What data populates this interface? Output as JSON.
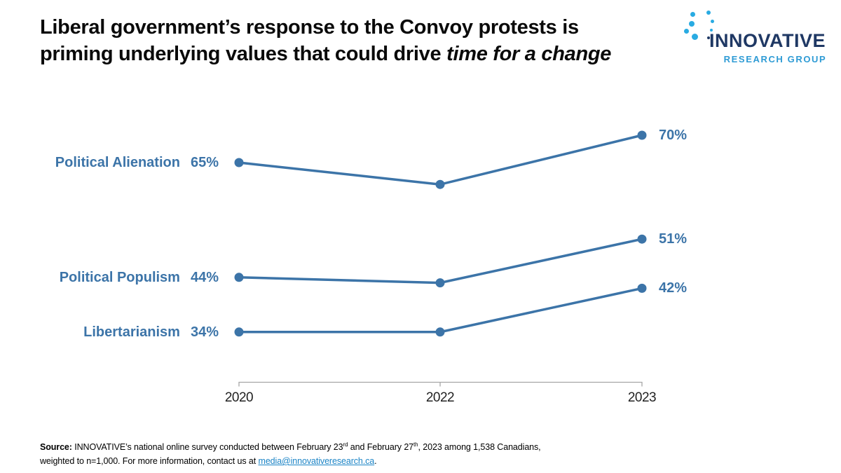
{
  "title": {
    "line1": "Liberal government’s response to the Convoy protests is",
    "line2_regular": "priming underlying values that could drive ",
    "line2_italic": "time for a change"
  },
  "logo": {
    "wordmark": "INNOVATIVE",
    "subtitle": "RESEARCH GROUP",
    "colors": {
      "navy": "#1F3864",
      "light_blue": "#29ABE2",
      "subtitle_blue": "#2E9BD5"
    }
  },
  "chart_data": {
    "type": "line",
    "x": [
      "2020",
      "2022",
      "2023"
    ],
    "series": [
      {
        "name": "Political Alienation",
        "values": [
          65,
          61,
          70
        ],
        "start_label": "65%",
        "end_label": "70%"
      },
      {
        "name": "Political Populism",
        "values": [
          44,
          43,
          51
        ],
        "start_label": "44%",
        "end_label": "51%"
      },
      {
        "name": "Libertarianism",
        "values": [
          34,
          34,
          42
        ],
        "start_label": "34%",
        "end_label": "42%"
      }
    ],
    "color": "#3C74A8",
    "axis_color": "#A6A6A6",
    "grid": false,
    "legend_position": "left-of-lines"
  },
  "footer": {
    "source_label": "Source:",
    "text_1": " INNOVATIVE’s national online survey conducted between February 23",
    "sup_1": "rd",
    "text_2": " and February 27",
    "sup_2": "th",
    "text_3": ", 2023  among 1,538  Canadians,",
    "line2_text": "weighted to n=1,000. For more information, contact us at ",
    "link_text": "media@innovativeresearch.ca",
    "line2_end": ".",
    "link_color": "#1B84C6"
  }
}
